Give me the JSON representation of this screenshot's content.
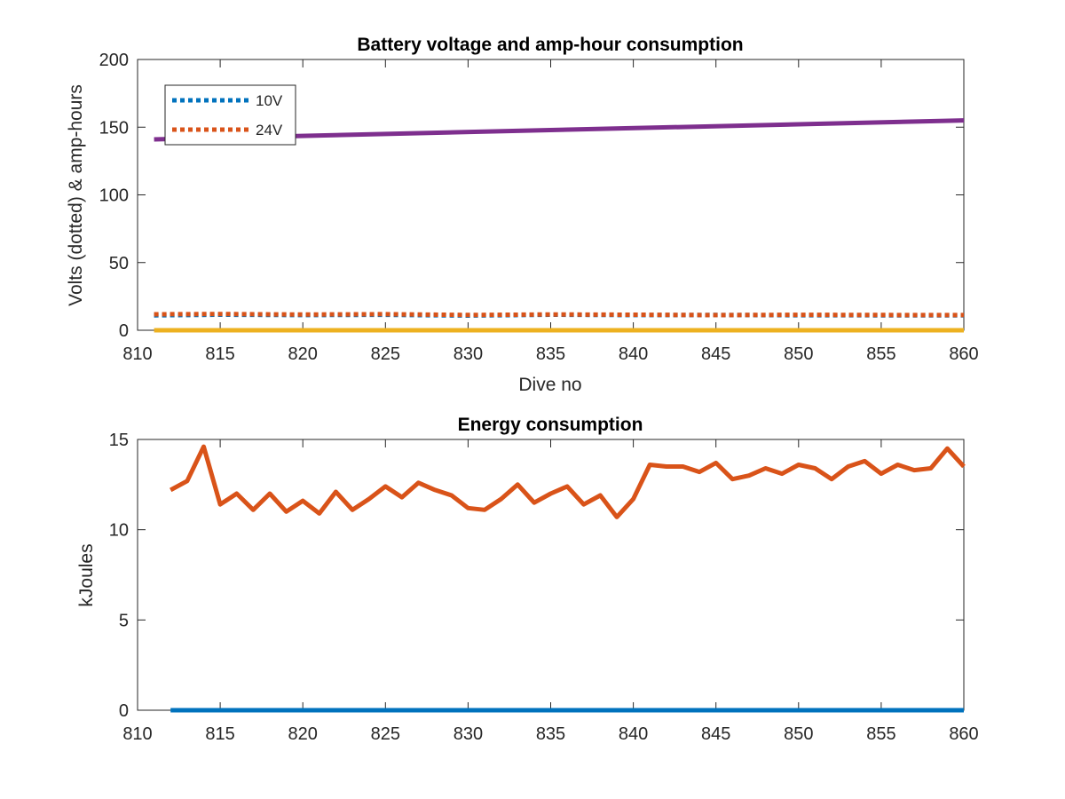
{
  "chart_data": [
    {
      "type": "line",
      "title": "Battery voltage and amp-hour consumption",
      "xlabel": "Dive no",
      "ylabel": "Volts (dotted) & amp-hours",
      "xlim": [
        810,
        860
      ],
      "ylim": [
        0,
        200
      ],
      "xticks": [
        "810",
        "815",
        "820",
        "825",
        "830",
        "835",
        "840",
        "845",
        "850",
        "855",
        "860"
      ],
      "yticks": [
        "0",
        "50",
        "100",
        "150",
        "200"
      ],
      "grid": false,
      "legend_position": "top-left",
      "series": [
        {
          "name": "10V",
          "style": "dotted",
          "color": "#0072BD",
          "x": [
            811,
            815,
            820,
            825,
            830,
            835,
            840,
            845,
            850,
            855,
            860
          ],
          "y": [
            11,
            11.5,
            11.2,
            11.4,
            10.8,
            11.5,
            11.2,
            11.3,
            11.1,
            11.0,
            11.0
          ]
        },
        {
          "name": "24V",
          "style": "dotted",
          "color": "#D95319",
          "x": [
            811,
            815,
            820,
            825,
            830,
            835,
            840,
            845,
            850,
            855,
            860
          ],
          "y": [
            11.8,
            12,
            11.6,
            11.9,
            11.3,
            11.7,
            11.5,
            11.2,
            11.4,
            11.3,
            11.2
          ]
        },
        {
          "style": "solid",
          "color": "#7E2F8E",
          "x": [
            811,
            860
          ],
          "y": [
            141,
            155
          ]
        },
        {
          "style": "solid",
          "color": "#EDB120",
          "x": [
            811,
            860
          ],
          "y": [
            0,
            0
          ]
        }
      ]
    },
    {
      "type": "line",
      "title": "Energy consumption",
      "xlabel": "",
      "ylabel": "kJoules",
      "xlim": [
        810,
        860
      ],
      "ylim": [
        0,
        15
      ],
      "xticks": [
        "810",
        "815",
        "820",
        "825",
        "830",
        "835",
        "840",
        "845",
        "850",
        "855",
        "860"
      ],
      "yticks": [
        "0",
        "5",
        "10",
        "15"
      ],
      "grid": false,
      "series": [
        {
          "style": "solid",
          "color": "#0072BD",
          "x": [
            812,
            860
          ],
          "y": [
            0,
            0
          ]
        },
        {
          "style": "solid",
          "color": "#D95319",
          "x": [
            812,
            813,
            814,
            815,
            816,
            817,
            818,
            819,
            820,
            821,
            822,
            823,
            824,
            825,
            826,
            827,
            828,
            829,
            830,
            831,
            832,
            833,
            834,
            835,
            836,
            837,
            838,
            839,
            840,
            841,
            842,
            843,
            844,
            845,
            846,
            847,
            848,
            849,
            850,
            851,
            852,
            853,
            854,
            855,
            856,
            857,
            858,
            859,
            860
          ],
          "y": [
            12.2,
            12.7,
            14.6,
            11.4,
            12.0,
            11.1,
            12.0,
            11.0,
            11.6,
            10.9,
            12.1,
            11.1,
            11.7,
            12.4,
            11.8,
            12.6,
            12.2,
            11.9,
            11.2,
            11.1,
            11.7,
            12.5,
            11.5,
            12.0,
            12.4,
            11.4,
            11.9,
            10.7,
            11.7,
            13.6,
            13.5,
            13.5,
            13.2,
            13.7,
            12.8,
            13.0,
            13.4,
            13.1,
            13.6,
            13.4,
            12.8,
            13.5,
            13.8,
            13.1,
            13.6,
            13.3,
            13.4,
            14.5,
            13.5
          ]
        }
      ]
    }
  ]
}
